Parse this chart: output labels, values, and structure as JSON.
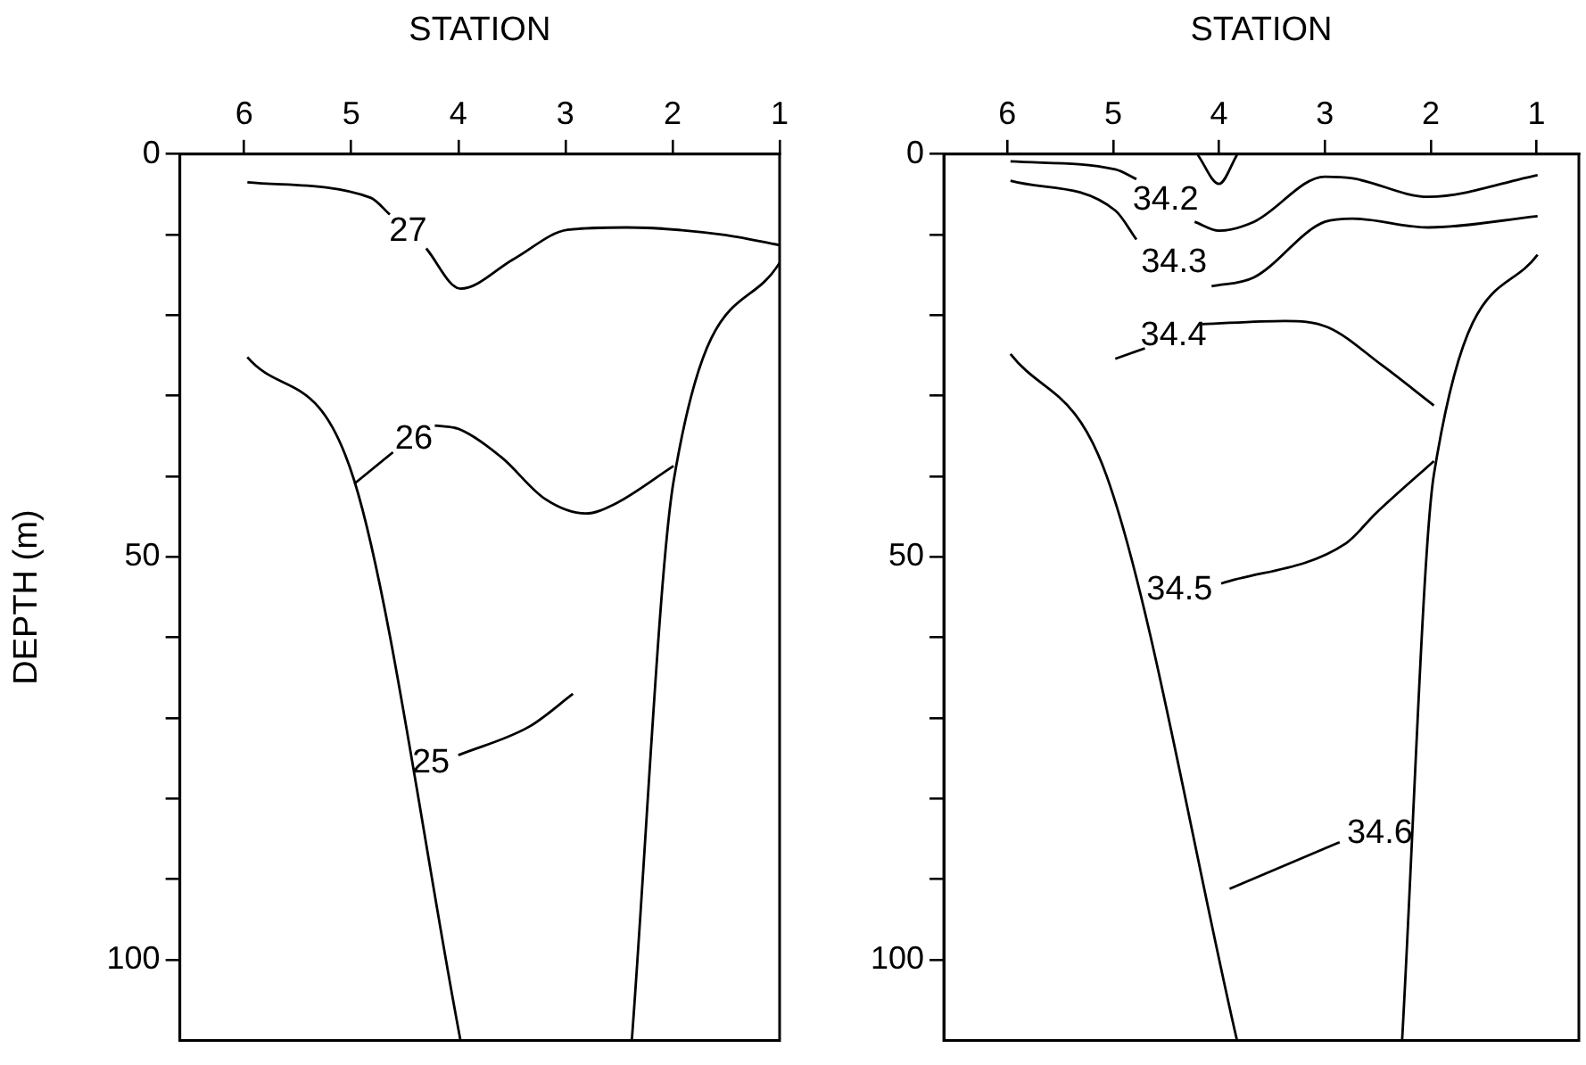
{
  "chart_data": [
    {
      "type": "line",
      "xlabel": "STATION",
      "ylabel": "DEPTH (m)",
      "xlim": [
        6.6,
        1
      ],
      "ylim": [
        110,
        0
      ],
      "marker": "none",
      "grid": false,
      "xticks": [
        6,
        5,
        4,
        3,
        2,
        1
      ],
      "yticks": [
        0,
        {
          "value": 10,
          "label": null
        },
        {
          "value": 20,
          "label": null
        },
        {
          "value": 30,
          "label": null
        },
        {
          "value": 40,
          "label": null
        },
        50,
        {
          "value": 60,
          "label": null
        },
        {
          "value": 70,
          "label": null
        },
        {
          "value": 80,
          "label": null
        },
        {
          "value": 90,
          "label": null
        },
        100
      ],
      "series": [
        {
          "name": "27",
          "color": "#000000",
          "x": [
            5.97,
            4.82,
            4.64,
            null,
            4.3,
            3.98,
            3.48,
            2.98,
            2.43,
            1.53,
            1
          ],
          "values": [
            3.5,
            5.4,
            7.5,
            null,
            11.7,
            16.7,
            13,
            9.4,
            9.1,
            10,
            11.3
          ]
        },
        {
          "name": "26",
          "color": "#000000",
          "x": [
            4.97,
            4.61,
            null,
            4.22,
            4,
            3.6,
            3.19,
            2.81,
            2.55,
            1.99
          ],
          "values": [
            40.9,
            37,
            null,
            33.7,
            34.1,
            37.6,
            42.8,
            44.6,
            43.5,
            38.7
          ]
        },
        {
          "name": "25",
          "color": "#000000",
          "x": [
            4,
            3.33,
            2.93
          ],
          "values": [
            74.6,
            71,
            67
          ]
        },
        {
          "color": "#000000",
          "x": [
            5.97,
            4.97,
            3.98
          ],
          "values": [
            25.2,
            40.6,
            110
          ]
        },
        {
          "color": "#000000",
          "x": [
            1,
            1.99,
            2.38
          ],
          "values": [
            13.5,
            40.6,
            110
          ]
        }
      ]
    },
    {
      "type": "line",
      "xlabel": "STATION",
      "xlim": [
        6.6,
        0.6
      ],
      "ylim": [
        110,
        0
      ],
      "marker": "none",
      "grid": false,
      "xticks": [
        6,
        5,
        4,
        3,
        2,
        1
      ],
      "yticks": [
        0,
        {
          "value": 10,
          "label": null
        },
        {
          "value": 20,
          "label": null
        },
        {
          "value": 30,
          "label": null
        },
        {
          "value": 40,
          "label": null
        },
        50,
        {
          "value": 60,
          "label": null
        },
        {
          "value": 70,
          "label": null
        },
        {
          "value": 80,
          "label": null
        },
        {
          "value": 90,
          "label": null
        },
        100
      ],
      "series": [
        {
          "name": "34.2",
          "color": "#000000",
          "x": [
            5.97,
            4.98,
            4.78,
            null,
            4.23,
            4,
            3.67,
            3,
            2.74,
            2.02,
            0.99
          ],
          "values": [
            0.9,
            1.9,
            3.1,
            null,
            8.4,
            9.5,
            8.4,
            2.8,
            3,
            5.3,
            2.6
          ]
        },
        {
          "color": "#000000",
          "x": [
            4.2,
            4,
            3.83
          ],
          "values": [
            0.1,
            3.7,
            0.1
          ]
        },
        {
          "name": "34.3",
          "color": "#000000",
          "x": [
            5.97,
            4.98,
            4.78,
            null,
            4.07,
            3.67,
            3,
            2.74,
            2.02,
            0.99
          ],
          "values": [
            3.3,
            7,
            10.6,
            null,
            16.4,
            15.3,
            8.4,
            8,
            9.1,
            7.7
          ]
        },
        {
          "name": "34.4",
          "color": "#000000",
          "x": [
            4.98,
            4.7,
            null,
            4.16,
            3.38,
            2.97,
            2.46,
            1.97
          ],
          "values": [
            25.4,
            24.1,
            null,
            21.1,
            20.7,
            21.5,
            26.2,
            31.2
          ]
        },
        {
          "name": "34.5",
          "color": "#000000",
          "x": [
            3.98,
            2.8,
            2.52,
            1.97
          ],
          "values": [
            53.3,
            48.3,
            44.6,
            38.1
          ]
        },
        {
          "name": "34.6",
          "color": "#000000",
          "x": [
            2.86,
            3.9
          ],
          "values": [
            85.4,
            91.2
          ]
        },
        {
          "color": "#000000",
          "x": [
            5.97,
            5.06,
            3.83
          ],
          "values": [
            24.8,
            40,
            110
          ]
        },
        {
          "color": "#000000",
          "x": [
            0.99,
            1.97,
            2.27
          ],
          "values": [
            12.5,
            39.8,
            110
          ]
        }
      ]
    }
  ]
}
